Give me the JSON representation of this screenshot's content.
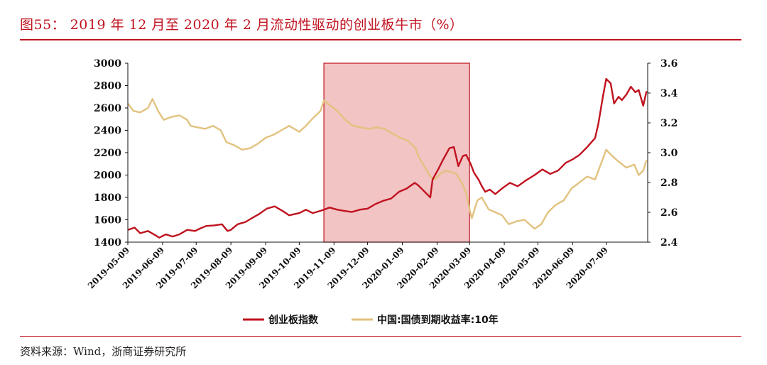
{
  "header": {
    "title": "图55： 2019 年 12 月至 2020 年 2 月流动性驱动的创业板牛市（%）"
  },
  "footer": {
    "source": "资料来源：Wind，浙商证券研究所"
  },
  "colors": {
    "accent": "#c0121f",
    "series_cyb": "#c0121f",
    "series_bond": "#e2c27f",
    "highlight_fill": "#f2c4c4",
    "highlight_stroke": "#c0121f"
  },
  "chart_data": {
    "type": "line",
    "title": "",
    "y_left": {
      "range": [
        1400,
        3000
      ],
      "ticks": [
        "1400",
        "1600",
        "1800",
        "2000",
        "2200",
        "2400",
        "2600",
        "2800",
        "3000"
      ]
    },
    "y_right": {
      "range": [
        2.4,
        3.6
      ],
      "ticks": [
        "2.4",
        "2.6",
        "2.8",
        "3.0",
        "3.2",
        "3.4",
        "3.6"
      ]
    },
    "x_range": [
      "2019-05-09",
      "2020-08-15"
    ],
    "x_ticks": [
      "2019-05-09",
      "2019-06-09",
      "2019-07-09",
      "2019-08-09",
      "2019-09-09",
      "2019-10-09",
      "2019-11-09",
      "2019-12-09",
      "2020-01-09",
      "2020-02-09",
      "2020-03-09",
      "2020-04-09",
      "2020-05-09",
      "2020-06-09",
      "2020-07-09"
    ],
    "highlight": {
      "from": "2019-10-31",
      "to": "2020-03-09"
    },
    "grid": false,
    "legend_position": "bottom",
    "series": [
      {
        "name": "创业板指数",
        "axis": "left",
        "points": [
          [
            "2019-05-09",
            1510
          ],
          [
            "2019-05-15",
            1530
          ],
          [
            "2019-05-20",
            1480
          ],
          [
            "2019-05-27",
            1500
          ],
          [
            "2019-06-03",
            1460
          ],
          [
            "2019-06-06",
            1440
          ],
          [
            "2019-06-12",
            1470
          ],
          [
            "2019-06-18",
            1450
          ],
          [
            "2019-06-24",
            1470
          ],
          [
            "2019-07-01",
            1510
          ],
          [
            "2019-07-08",
            1500
          ],
          [
            "2019-07-12",
            1520
          ],
          [
            "2019-07-18",
            1545
          ],
          [
            "2019-07-25",
            1550
          ],
          [
            "2019-08-01",
            1560
          ],
          [
            "2019-08-06",
            1500
          ],
          [
            "2019-08-09",
            1510
          ],
          [
            "2019-08-15",
            1560
          ],
          [
            "2019-08-22",
            1580
          ],
          [
            "2019-08-27",
            1610
          ],
          [
            "2019-09-03",
            1650
          ],
          [
            "2019-09-10",
            1700
          ],
          [
            "2019-09-17",
            1720
          ],
          [
            "2019-09-24",
            1680
          ],
          [
            "2019-09-30",
            1640
          ],
          [
            "2019-10-09",
            1660
          ],
          [
            "2019-10-15",
            1690
          ],
          [
            "2019-10-21",
            1660
          ],
          [
            "2019-10-28",
            1680
          ],
          [
            "2019-10-31",
            1690
          ],
          [
            "2019-11-05",
            1710
          ],
          [
            "2019-11-12",
            1690
          ],
          [
            "2019-11-18",
            1680
          ],
          [
            "2019-11-25",
            1670
          ],
          [
            "2019-12-02",
            1690
          ],
          [
            "2019-12-09",
            1700
          ],
          [
            "2019-12-16",
            1740
          ],
          [
            "2019-12-23",
            1770
          ],
          [
            "2019-12-30",
            1790
          ],
          [
            "2020-01-06",
            1850
          ],
          [
            "2020-01-13",
            1880
          ],
          [
            "2020-01-20",
            1930
          ],
          [
            "2020-01-23",
            1910
          ],
          [
            "2020-02-03",
            1800
          ],
          [
            "2020-02-05",
            1960
          ],
          [
            "2020-02-10",
            2050
          ],
          [
            "2020-02-14",
            2130
          ],
          [
            "2020-02-20",
            2240
          ],
          [
            "2020-02-24",
            2250
          ],
          [
            "2020-02-28",
            2080
          ],
          [
            "2020-03-03",
            2170
          ],
          [
            "2020-03-06",
            2180
          ],
          [
            "2020-03-10",
            2100
          ],
          [
            "2020-03-13",
            2020
          ],
          [
            "2020-03-17",
            1960
          ],
          [
            "2020-03-20",
            1900
          ],
          [
            "2020-03-23",
            1850
          ],
          [
            "2020-03-27",
            1870
          ],
          [
            "2020-04-01",
            1830
          ],
          [
            "2020-04-07",
            1880
          ],
          [
            "2020-04-14",
            1930
          ],
          [
            "2020-04-21",
            1900
          ],
          [
            "2020-04-28",
            1950
          ],
          [
            "2020-05-06",
            2000
          ],
          [
            "2020-05-13",
            2050
          ],
          [
            "2020-05-20",
            2010
          ],
          [
            "2020-05-27",
            2040
          ],
          [
            "2020-06-03",
            2110
          ],
          [
            "2020-06-09",
            2140
          ],
          [
            "2020-06-15",
            2180
          ],
          [
            "2020-06-22",
            2250
          ],
          [
            "2020-06-29",
            2330
          ],
          [
            "2020-07-02",
            2460
          ],
          [
            "2020-07-06",
            2700
          ],
          [
            "2020-07-09",
            2860
          ],
          [
            "2020-07-13",
            2820
          ],
          [
            "2020-07-16",
            2640
          ],
          [
            "2020-07-20",
            2700
          ],
          [
            "2020-07-23",
            2670
          ],
          [
            "2020-07-27",
            2720
          ],
          [
            "2020-07-31",
            2790
          ],
          [
            "2020-08-04",
            2740
          ],
          [
            "2020-08-07",
            2760
          ],
          [
            "2020-08-11",
            2620
          ],
          [
            "2020-08-14",
            2750
          ]
        ]
      },
      {
        "name": "中国:国债到期收益率:10年",
        "axis": "right",
        "points": [
          [
            "2019-05-09",
            3.33
          ],
          [
            "2019-05-14",
            3.28
          ],
          [
            "2019-05-20",
            3.27
          ],
          [
            "2019-05-27",
            3.3
          ],
          [
            "2019-05-31",
            3.36
          ],
          [
            "2019-06-05",
            3.28
          ],
          [
            "2019-06-10",
            3.22
          ],
          [
            "2019-06-17",
            3.24
          ],
          [
            "2019-06-24",
            3.25
          ],
          [
            "2019-07-01",
            3.22
          ],
          [
            "2019-07-04",
            3.18
          ],
          [
            "2019-07-10",
            3.17
          ],
          [
            "2019-07-17",
            3.16
          ],
          [
            "2019-07-24",
            3.18
          ],
          [
            "2019-07-31",
            3.15
          ],
          [
            "2019-08-05",
            3.07
          ],
          [
            "2019-08-12",
            3.05
          ],
          [
            "2019-08-19",
            3.02
          ],
          [
            "2019-08-26",
            3.03
          ],
          [
            "2019-09-02",
            3.06
          ],
          [
            "2019-09-09",
            3.1
          ],
          [
            "2019-09-16",
            3.12
          ],
          [
            "2019-09-23",
            3.15
          ],
          [
            "2019-09-30",
            3.18
          ],
          [
            "2019-10-09",
            3.14
          ],
          [
            "2019-10-15",
            3.18
          ],
          [
            "2019-10-21",
            3.23
          ],
          [
            "2019-10-28",
            3.28
          ],
          [
            "2019-10-31",
            3.35
          ],
          [
            "2019-11-05",
            3.32
          ],
          [
            "2019-11-12",
            3.28
          ],
          [
            "2019-11-19",
            3.22
          ],
          [
            "2019-11-26",
            3.18
          ],
          [
            "2019-12-03",
            3.17
          ],
          [
            "2019-12-10",
            3.16
          ],
          [
            "2019-12-17",
            3.17
          ],
          [
            "2019-12-24",
            3.16
          ],
          [
            "2019-12-31",
            3.13
          ],
          [
            "2020-01-07",
            3.1
          ],
          [
            "2020-01-14",
            3.08
          ],
          [
            "2020-01-21",
            3.03
          ],
          [
            "2020-01-23",
            2.98
          ],
          [
            "2020-02-03",
            2.84
          ],
          [
            "2020-02-07",
            2.82
          ],
          [
            "2020-02-12",
            2.86
          ],
          [
            "2020-02-17",
            2.88
          ],
          [
            "2020-02-21",
            2.87
          ],
          [
            "2020-02-26",
            2.86
          ],
          [
            "2020-03-02",
            2.8
          ],
          [
            "2020-03-06",
            2.73
          ],
          [
            "2020-03-09",
            2.62
          ],
          [
            "2020-03-11",
            2.56
          ],
          [
            "2020-03-16",
            2.68
          ],
          [
            "2020-03-20",
            2.7
          ],
          [
            "2020-03-26",
            2.62
          ],
          [
            "2020-04-01",
            2.6
          ],
          [
            "2020-04-07",
            2.58
          ],
          [
            "2020-04-13",
            2.52
          ],
          [
            "2020-04-20",
            2.54
          ],
          [
            "2020-04-27",
            2.55
          ],
          [
            "2020-05-06",
            2.49
          ],
          [
            "2020-05-12",
            2.52
          ],
          [
            "2020-05-18",
            2.6
          ],
          [
            "2020-05-25",
            2.65
          ],
          [
            "2020-06-01",
            2.68
          ],
          [
            "2020-06-08",
            2.76
          ],
          [
            "2020-06-15",
            2.8
          ],
          [
            "2020-06-22",
            2.84
          ],
          [
            "2020-06-29",
            2.82
          ],
          [
            "2020-07-06",
            2.96
          ],
          [
            "2020-07-09",
            3.02
          ],
          [
            "2020-07-14",
            2.98
          ],
          [
            "2020-07-20",
            2.94
          ],
          [
            "2020-07-27",
            2.9
          ],
          [
            "2020-08-03",
            2.92
          ],
          [
            "2020-08-07",
            2.85
          ],
          [
            "2020-08-11",
            2.88
          ],
          [
            "2020-08-14",
            2.95
          ]
        ]
      }
    ]
  }
}
